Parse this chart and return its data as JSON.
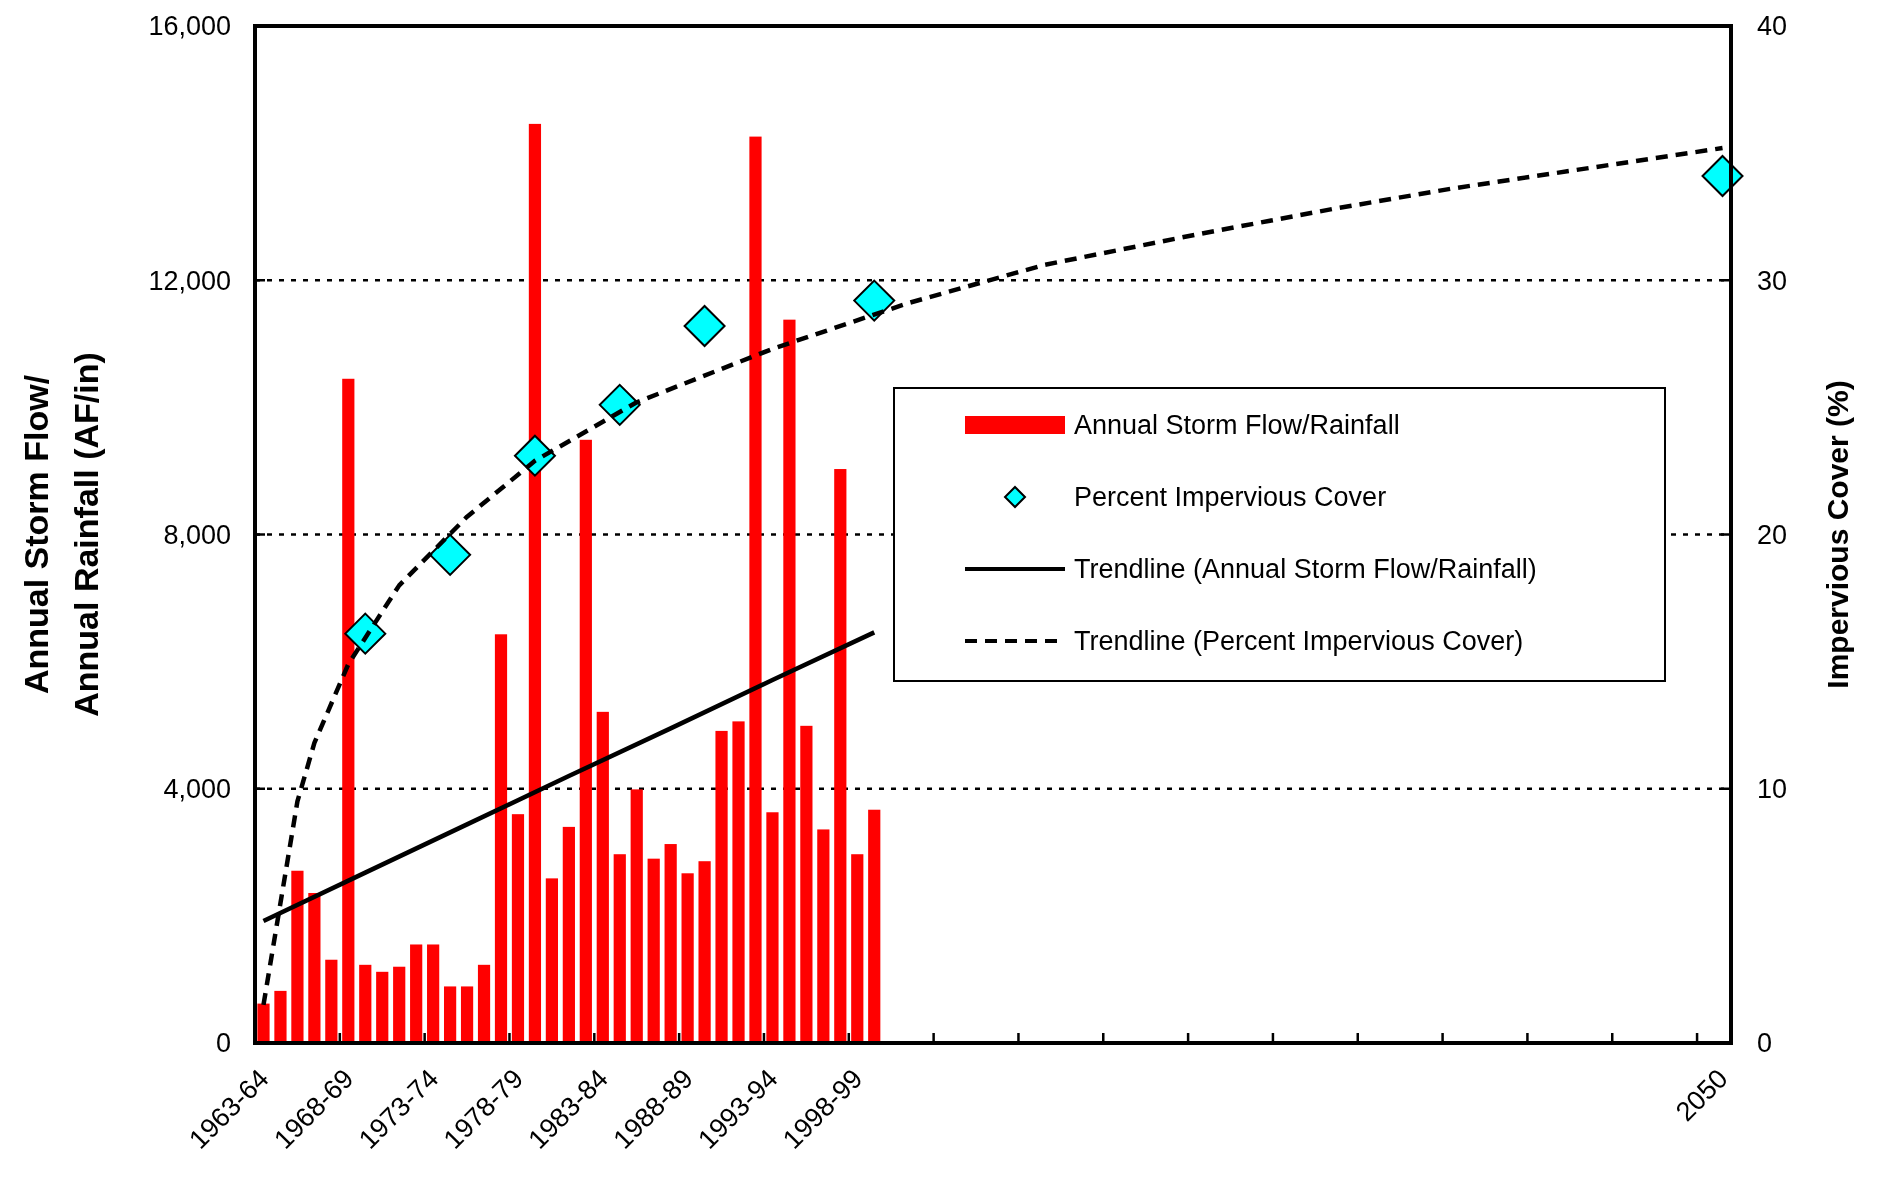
{
  "chart_data": {
    "type": "bar",
    "ylabel": "Annual Storm Flow/\nAnnual Rainfall (AF/in)",
    "y2label": "Impervious Cover (%)",
    "categories": [
      "1963-64",
      null,
      null,
      null,
      null,
      "1968-69",
      null,
      null,
      null,
      null,
      "1973-74",
      null,
      null,
      null,
      null,
      "1978-79",
      null,
      null,
      null,
      null,
      "1983-84",
      null,
      null,
      null,
      null,
      "1988-89",
      null,
      null,
      null,
      null,
      "1993-94",
      null,
      null,
      null,
      null,
      "1998-99",
      null,
      null,
      null,
      null,
      null,
      null,
      null,
      null,
      null,
      null,
      null,
      null,
      null,
      null,
      null,
      null,
      null,
      null,
      null,
      null,
      null,
      null,
      null,
      null,
      null,
      null,
      null,
      null,
      null,
      null,
      null,
      null,
      null,
      null,
      null,
      null,
      null,
      null,
      null,
      null,
      null,
      null,
      null,
      null,
      null,
      null,
      null,
      null,
      null,
      null,
      "2050"
    ],
    "series": [
      {
        "name": "Annual Storm Flow/Rainfall",
        "color": "#ff0000",
        "values": [
          620,
          820,
          2710,
          2360,
          1310,
          10450,
          1230,
          1120,
          1200,
          1550,
          1550,
          890,
          890,
          1230,
          6430,
          3600,
          14460,
          2590,
          3400,
          9490,
          5210,
          2970,
          3990,
          2900,
          3130,
          2670,
          2860,
          4910,
          5060,
          14260,
          3630,
          11380,
          4990,
          3360,
          9030,
          2970,
          3670,
          null,
          null,
          null,
          null,
          null,
          null,
          null,
          null,
          null,
          null,
          null,
          null,
          null,
          null,
          null,
          null,
          null,
          null,
          null,
          null,
          null,
          null,
          null,
          null,
          null,
          null,
          null,
          null,
          null,
          null,
          null,
          null,
          null,
          null,
          null,
          null,
          null,
          null,
          null,
          null,
          null,
          null,
          null,
          null,
          null,
          null,
          null,
          null,
          null,
          null
        ]
      },
      {
        "type": "scatter",
        "name": "Percent Impervious Cover",
        "color": "#00ffff",
        "axis": "y2",
        "marker": "diamond",
        "values": [
          null,
          null,
          null,
          null,
          null,
          null,
          16.1,
          null,
          null,
          null,
          null,
          19.2,
          null,
          null,
          null,
          null,
          23.1,
          null,
          null,
          null,
          null,
          25.1,
          null,
          null,
          null,
          null,
          28.2,
          null,
          null,
          null,
          null,
          null,
          null,
          null,
          null,
          null,
          29.2,
          null,
          null,
          null,
          null,
          null,
          null,
          null,
          null,
          null,
          null,
          null,
          null,
          null,
          null,
          null,
          null,
          null,
          null,
          null,
          null,
          null,
          null,
          null,
          null,
          null,
          null,
          null,
          null,
          null,
          null,
          null,
          null,
          null,
          null,
          null,
          null,
          null,
          null,
          null,
          null,
          null,
          null,
          null,
          null,
          null,
          null,
          null,
          null,
          null,
          34.1
        ]
      },
      {
        "type": "line",
        "name": "Trendline (Annual Storm Flow/Rainfall)",
        "color": "#000000",
        "line_style": "solid",
        "values": [
          1920,
          null,
          null,
          null,
          null,
          null,
          2680,
          null,
          null,
          null,
          null,
          null,
          3440,
          null,
          null,
          null,
          null,
          null,
          4200,
          null,
          null,
          null,
          null,
          null,
          4950,
          null,
          null,
          null,
          null,
          null,
          5710,
          null,
          null,
          null,
          null,
          null,
          6460,
          null,
          null,
          null,
          null,
          null,
          null,
          null,
          null,
          null,
          null,
          null,
          null,
          null,
          null,
          null,
          null,
          null,
          null,
          null,
          null,
          null,
          null,
          null,
          null,
          null,
          null,
          null,
          null,
          null,
          null,
          null,
          null,
          null,
          null,
          null,
          null,
          null,
          null,
          null,
          null,
          null,
          null,
          null,
          null,
          null,
          null,
          null,
          null,
          null,
          null
        ]
      },
      {
        "type": "line",
        "name": "Trendline (Percent Impervious Cover)",
        "color": "#000000",
        "axis": "y2",
        "line_style": "dashed",
        "values": [
          1.5,
          5.5,
          9.5,
          11.8,
          null,
          14.9,
          null,
          null,
          18,
          null,
          null,
          null,
          20.7,
          null,
          null,
          null,
          22.9,
          null,
          null,
          null,
          null,
          null,
          25.2,
          null,
          null,
          null,
          null,
          null,
          null,
          null,
          27.3,
          null,
          null,
          null,
          null,
          null,
          null,
          null,
          29.1,
          null,
          null,
          null,
          null,
          null,
          null,
          null,
          30.6,
          null,
          null,
          null,
          null,
          null,
          null,
          null,
          null,
          31.8,
          null,
          null,
          null,
          null,
          null,
          null,
          null,
          32.8,
          null,
          null,
          null,
          null,
          null,
          null,
          33.6,
          null,
          null,
          null,
          null,
          null,
          null,
          null,
          34.4,
          null,
          null,
          null,
          null,
          null,
          null,
          null,
          35.2
        ]
      }
    ],
    "ylim": [
      0,
      16000
    ],
    "yticks": [
      {
        "value": 0,
        "label": "0"
      },
      {
        "value": 4000,
        "label": "4,000"
      },
      {
        "value": 8000,
        "label": "8,000"
      },
      {
        "value": 12000,
        "label": "12,000"
      },
      {
        "value": 16000,
        "label": "16,000"
      }
    ],
    "y2lim": [
      0,
      40
    ],
    "y2ticks": [
      0,
      10,
      20,
      30,
      40
    ],
    "grid": "y",
    "legend": "right"
  }
}
